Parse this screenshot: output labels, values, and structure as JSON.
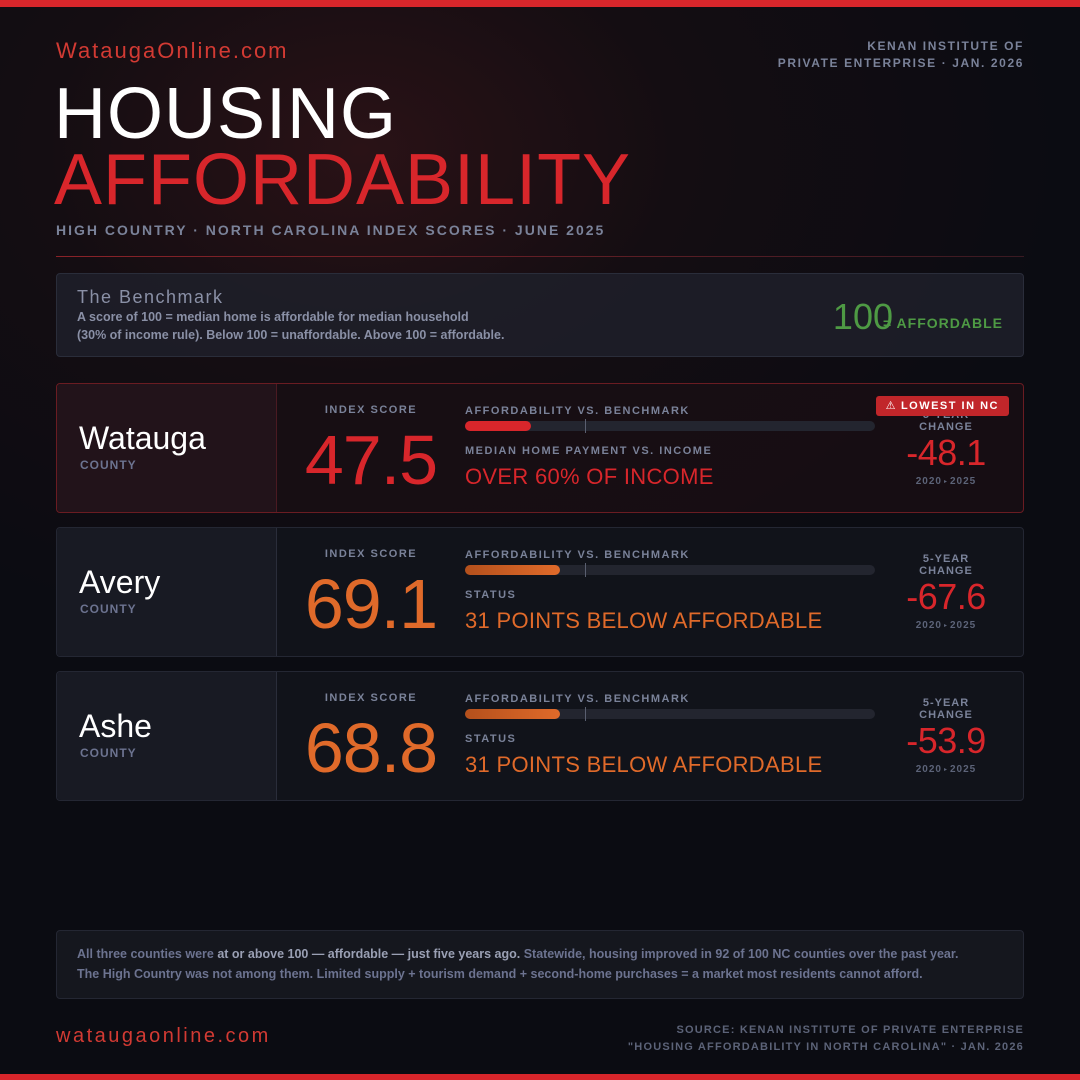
{
  "colors": {
    "accent": "#d8262b",
    "orange": "#e06a2a",
    "green": "#4e9a44",
    "muted": "#7a8299"
  },
  "header": {
    "brand": "WataugaOnline.com",
    "publisher_line1": "KENAN INSTITUTE OF",
    "publisher_line2": "PRIVATE ENTERPRISE · JAN. 2026",
    "title_line1": "HOUSING",
    "title_line2": "AFFORDABILITY",
    "subtitle": "HIGH COUNTRY · NORTH CAROLINA INDEX SCORES · JUNE 2025"
  },
  "benchmark": {
    "title": "The Benchmark",
    "desc_line1": "A score of 100 = median home is affordable for median household",
    "desc_line2": "(30% of income rule). Below 100 = unaffordable. Above 100 = affordable.",
    "value": "100",
    "value_label": "= AFFORDABLE"
  },
  "labels": {
    "index_score": "INDEX SCORE",
    "bar_label": "AFFORDABILITY VS. BENCHMARK",
    "change_label_1": "5-YEAR",
    "change_label_2": "CHANGE",
    "year_start": "2020",
    "year_end": "2025",
    "year_sep": "▸"
  },
  "counties": [
    {
      "name": "Watauga",
      "type": "COUNTY",
      "index": "47.5",
      "index_fraction": 0.475,
      "stat_label": "MEDIAN HOME PAYMENT VS. INCOME",
      "stat_value": "OVER 60% OF INCOME",
      "change": "-48.1",
      "badge_icon": "⚠",
      "badge": "LOWEST IN NC"
    },
    {
      "name": "Avery",
      "type": "COUNTY",
      "index": "69.1",
      "index_fraction": 0.691,
      "stat_label": "STATUS",
      "stat_value": "31 POINTS BELOW AFFORDABLE",
      "change": "-67.6"
    },
    {
      "name": "Ashe",
      "type": "COUNTY",
      "index": "68.8",
      "index_fraction": 0.688,
      "stat_label": "STATUS",
      "stat_value": "31 POINTS BELOW AFFORDABLE",
      "change": "-53.9"
    }
  ],
  "footnote": {
    "part1": "All three counties were ",
    "part2": "at or above 100 — affordable — just five years ago.",
    "part3": " Statewide, housing improved in 92 of 100 NC counties over the past year.",
    "line2": "The High Country was not among them. Limited supply + tourism demand + second-home purchases = a market most residents cannot afford."
  },
  "footer": {
    "brand": "wataugaonline.com",
    "source_line1": "SOURCE: KENAN INSTITUTE OF PRIVATE ENTERPRISE",
    "source_line2": "\"HOUSING AFFORDABILITY IN NORTH CAROLINA\" · JAN. 2026"
  }
}
